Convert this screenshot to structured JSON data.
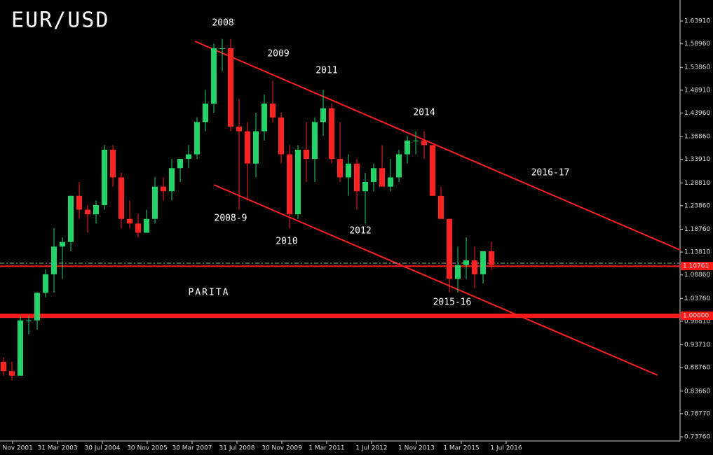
{
  "chart_data": {
    "type": "candlestick",
    "title": "EUR/USD",
    "xlabels": [
      "30 Nov 2001",
      "31 Mar 2003",
      "30 Jul 2004",
      "30 Nov 2005",
      "30 Mar 2007",
      "31 Jul 2008",
      "30 Nov 2009",
      "1 Mar 2011",
      "1 Jul 2012",
      "1 Nov 2013",
      "1 Mar 2015",
      "1 Jul 2016"
    ],
    "candles": [
      [
        0.9,
        0.91,
        0.87,
        0.88
      ],
      [
        0.88,
        0.9,
        0.86,
        0.87
      ],
      [
        0.87,
        1.0,
        0.87,
        0.99
      ],
      [
        0.99,
        1.0,
        0.96,
        0.99
      ],
      [
        0.99,
        1.05,
        0.97,
        1.05
      ],
      [
        1.05,
        1.1,
        1.04,
        1.09
      ],
      [
        1.09,
        1.19,
        1.05,
        1.15
      ],
      [
        1.15,
        1.17,
        1.08,
        1.16
      ],
      [
        1.16,
        1.26,
        1.14,
        1.26
      ],
      [
        1.26,
        1.29,
        1.21,
        1.23
      ],
      [
        1.23,
        1.24,
        1.18,
        1.22
      ],
      [
        1.22,
        1.25,
        1.2,
        1.24
      ],
      [
        1.24,
        1.37,
        1.23,
        1.36
      ],
      [
        1.36,
        1.37,
        1.28,
        1.3
      ],
      [
        1.3,
        1.31,
        1.19,
        1.21
      ],
      [
        1.21,
        1.25,
        1.19,
        1.2
      ],
      [
        1.2,
        1.22,
        1.17,
        1.18
      ],
      [
        1.18,
        1.23,
        1.18,
        1.21
      ],
      [
        1.21,
        1.3,
        1.2,
        1.28
      ],
      [
        1.28,
        1.3,
        1.25,
        1.27
      ],
      [
        1.27,
        1.34,
        1.25,
        1.32
      ],
      [
        1.32,
        1.34,
        1.29,
        1.34
      ],
      [
        1.34,
        1.37,
        1.32,
        1.35
      ],
      [
        1.35,
        1.43,
        1.34,
        1.42
      ],
      [
        1.42,
        1.49,
        1.4,
        1.46
      ],
      [
        1.46,
        1.59,
        1.44,
        1.58
      ],
      [
        1.58,
        1.6,
        1.53,
        1.58
      ],
      [
        1.58,
        1.6,
        1.4,
        1.41
      ],
      [
        1.41,
        1.47,
        1.23,
        1.4
      ],
      [
        1.4,
        1.42,
        1.25,
        1.33
      ],
      [
        1.33,
        1.44,
        1.3,
        1.4
      ],
      [
        1.4,
        1.48,
        1.38,
        1.46
      ],
      [
        1.46,
        1.51,
        1.42,
        1.43
      ],
      [
        1.43,
        1.44,
        1.33,
        1.35
      ],
      [
        1.35,
        1.37,
        1.19,
        1.22
      ],
      [
        1.22,
        1.37,
        1.21,
        1.36
      ],
      [
        1.36,
        1.42,
        1.29,
        1.34
      ],
      [
        1.34,
        1.43,
        1.29,
        1.42
      ],
      [
        1.42,
        1.49,
        1.39,
        1.45
      ],
      [
        1.45,
        1.46,
        1.33,
        1.34
      ],
      [
        1.34,
        1.42,
        1.29,
        1.3
      ],
      [
        1.3,
        1.35,
        1.26,
        1.33
      ],
      [
        1.33,
        1.34,
        1.23,
        1.27
      ],
      [
        1.27,
        1.31,
        1.2,
        1.29
      ],
      [
        1.29,
        1.33,
        1.27,
        1.32
      ],
      [
        1.32,
        1.37,
        1.28,
        1.28
      ],
      [
        1.28,
        1.34,
        1.27,
        1.3
      ],
      [
        1.3,
        1.36,
        1.29,
        1.35
      ],
      [
        1.35,
        1.39,
        1.33,
        1.38
      ],
      [
        1.38,
        1.4,
        1.35,
        1.38
      ],
      [
        1.38,
        1.4,
        1.34,
        1.37
      ],
      [
        1.37,
        1.37,
        1.26,
        1.26
      ],
      [
        1.26,
        1.28,
        1.21,
        1.21
      ],
      [
        1.21,
        1.21,
        1.05,
        1.08
      ],
      [
        1.08,
        1.15,
        1.05,
        1.11
      ],
      [
        1.11,
        1.17,
        1.08,
        1.12
      ],
      [
        1.12,
        1.15,
        1.06,
        1.09
      ],
      [
        1.09,
        1.14,
        1.07,
        1.14
      ],
      [
        1.14,
        1.16,
        1.1,
        1.11
      ]
    ],
    "up_color": "#22d36a",
    "down_color": "#ff2222",
    "ylim": [
      0.7376,
      1.6391
    ],
    "yticks": [
      {
        "value": 1.6391,
        "label": "1.63910"
      },
      {
        "value": 1.5896,
        "label": "1.58960"
      },
      {
        "value": 1.5386,
        "label": "1.53860"
      },
      {
        "value": 1.4891,
        "label": "1.48910"
      },
      {
        "value": 1.4396,
        "label": "1.43960"
      },
      {
        "value": 1.3886,
        "label": "1.38860"
      },
      {
        "value": 1.3391,
        "label": "1.33910"
      },
      {
        "value": 1.2881,
        "label": "1.28810"
      },
      {
        "value": 1.2386,
        "label": "1.23860"
      },
      {
        "value": 1.1876,
        "label": "1.18760"
      },
      {
        "value": 1.1381,
        "label": "1.13810"
      },
      {
        "value": 1.0886,
        "label": "1.08860"
      },
      {
        "value": 1.0376,
        "label": "1.03760"
      },
      {
        "value": 0.9881,
        "label": "0.98810"
      },
      {
        "value": 0.9371,
        "label": "0.93710"
      },
      {
        "value": 0.8876,
        "label": "0.88760"
      },
      {
        "value": 0.8366,
        "label": "0.83660"
      },
      {
        "value": 0.7877,
        "label": "0.78770"
      },
      {
        "value": 0.7376,
        "label": "0.73760"
      }
    ],
    "levels": [
      {
        "value": 1.10761,
        "label": "1.10761"
      },
      {
        "value": 1.0,
        "label": "1.00000"
      }
    ],
    "annotations": [
      "2008",
      "2009",
      "2011",
      "2014",
      "2016-17",
      "2008-9",
      "2010",
      "2012",
      "2015-16",
      "PARITA"
    ]
  }
}
